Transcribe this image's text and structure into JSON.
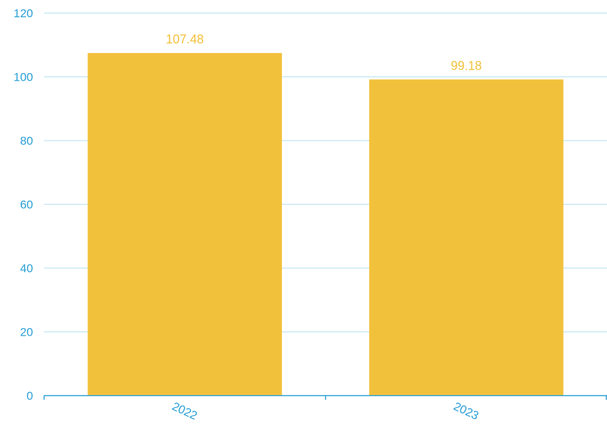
{
  "chart_data": {
    "type": "bar",
    "categories": [
      "2022",
      "2023"
    ],
    "values": [
      107.48,
      99.18
    ],
    "data_labels": [
      "107.48",
      "99.18"
    ],
    "ylim": [
      0,
      120
    ],
    "yticks": [
      "0",
      "20",
      "40",
      "60",
      "80",
      "100",
      "120"
    ],
    "grid": true,
    "legend": "none",
    "title": "",
    "xlabel": "",
    "ylabel": "",
    "colors": {
      "bar": "#f2c13c",
      "value_label": "#f2c13c",
      "axis_text": "#2a9fd6",
      "grid": "#bfe3f2",
      "axis_line": "#2a9fd6"
    }
  }
}
